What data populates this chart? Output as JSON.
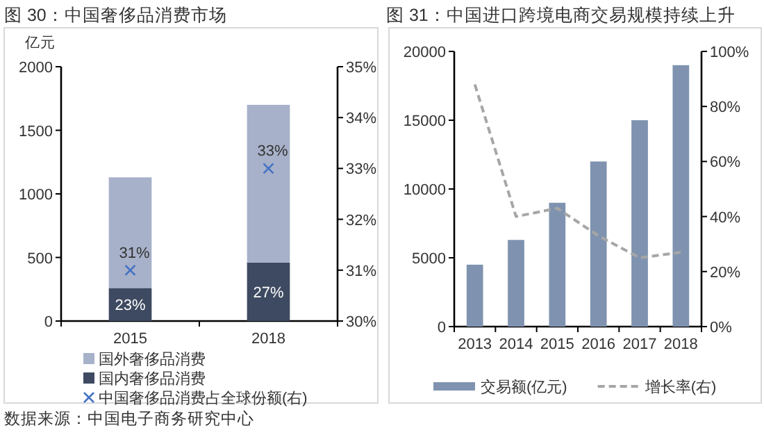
{
  "chart_data": [
    {
      "type": "bar",
      "title": "图 30：中国奢侈品消费市场",
      "ylabel": "亿元",
      "categories": [
        "2015",
        "2018"
      ],
      "stacked": true,
      "series": [
        {
          "name": "国内奢侈品消费",
          "color": "#3e4a61",
          "values": [
            260,
            460
          ]
        },
        {
          "name": "国外奢侈品消费",
          "color": "#a7b1c9",
          "values": [
            870,
            1240
          ]
        },
        {
          "name": "中国奢侈品消费占全球份额(右)",
          "type": "scatter",
          "axis": "y2",
          "marker": "cross",
          "color": "#4472c4",
          "values": [
            31,
            33
          ],
          "value_labels": [
            "31%",
            "33%"
          ]
        }
      ],
      "ylim": [
        0,
        2000
      ],
      "yticks": [
        0,
        500,
        1000,
        1500,
        2000
      ],
      "y2lim": [
        30,
        35
      ],
      "y2ticks": [
        {
          "value": 30,
          "label": "30%"
        },
        {
          "value": 31,
          "label": "31%"
        },
        {
          "value": 32,
          "label": "32%"
        },
        {
          "value": 33,
          "label": "33%"
        },
        {
          "value": 34,
          "label": "34%"
        },
        {
          "value": 35,
          "label": "35%"
        }
      ],
      "legend": "bottom",
      "annotations": [
        {
          "text": "23%",
          "x": "2015",
          "y": 260
        },
        {
          "text": "27%",
          "x": "2018",
          "y": 460
        },
        "数据来源：中国电子商务研究中心"
      ]
    },
    {
      "type": "bar",
      "title": "图 31：中国进口跨境电商交易规模持续上升",
      "categories": [
        "2013",
        "2014",
        "2015",
        "2016",
        "2017",
        "2018"
      ],
      "series": [
        {
          "name": "交易额(亿元)",
          "color": "#7f93b0",
          "values": [
            4500,
            6300,
            9000,
            12000,
            15000,
            19000
          ]
        },
        {
          "name": "增长率(右)",
          "type": "line",
          "axis": "y2",
          "line_style": "dashed",
          "marker": "none",
          "color": "#a6a6a6",
          "values": [
            88,
            40,
            43,
            33,
            25,
            27
          ]
        }
      ],
      "ylim": [
        0,
        20000
      ],
      "yticks": [
        0,
        5000,
        10000,
        15000,
        20000
      ],
      "y2lim": [
        0,
        100
      ],
      "y2ticks": [
        {
          "value": 0,
          "label": "0%"
        },
        {
          "value": 20,
          "label": "20%"
        },
        {
          "value": 40,
          "label": "40%"
        },
        {
          "value": 60,
          "label": "60%"
        },
        {
          "value": 80,
          "label": "80%"
        },
        {
          "value": 100,
          "label": "100%"
        }
      ],
      "legend": "bottom"
    }
  ]
}
